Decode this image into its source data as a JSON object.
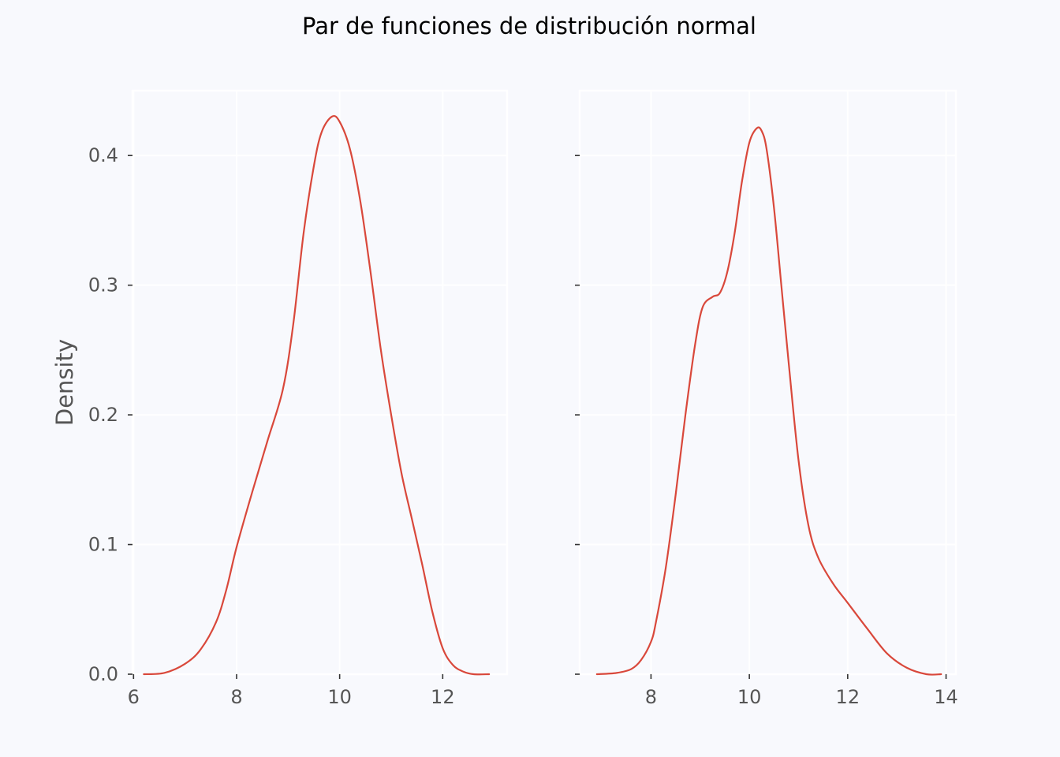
{
  "colors": {
    "background": "#f8f9fd",
    "axes_background": "#f8f9fd",
    "grid": "#ffffff",
    "line": "#d9483b",
    "text": "#555555",
    "title": "#000000"
  },
  "chart_data": {
    "suptitle": "Par de funciones de distribución normal",
    "subplots": [
      {
        "type": "line",
        "kind": "kde",
        "xlabel": "",
        "ylabel": "Density",
        "xlim": [
          5.98,
          13.25
        ],
        "ylim": [
          0,
          0.45
        ],
        "xticks": [
          6,
          8,
          10,
          12
        ],
        "xtick_labels": [
          "6",
          "8",
          "10",
          "12"
        ],
        "yticks": [
          0.0,
          0.1,
          0.2,
          0.3,
          0.4
        ],
        "ytick_labels": [
          "0.0",
          "0.1",
          "0.2",
          "0.3",
          "0.4"
        ],
        "show_ytick_labels": true,
        "grid": true,
        "series": [
          {
            "x": [
              6.2,
              6.6,
              7.0,
              7.3,
              7.6,
              7.8,
              8.0,
              8.3,
              8.6,
              8.9,
              9.1,
              9.3,
              9.5,
              9.65,
              9.85,
              10.0,
              10.2,
              10.4,
              10.6,
              10.8,
              11.0,
              11.2,
              11.4,
              11.6,
              11.8,
              12.0,
              12.2,
              12.4,
              12.6,
              12.9
            ],
            "y": [
              0.0,
              0.001,
              0.008,
              0.019,
              0.04,
              0.065,
              0.098,
              0.14,
              0.18,
              0.22,
              0.27,
              0.34,
              0.392,
              0.418,
              0.43,
              0.426,
              0.405,
              0.365,
              0.31,
              0.25,
              0.2,
              0.155,
              0.12,
              0.085,
              0.048,
              0.02,
              0.007,
              0.002,
              0.0,
              0.0
            ]
          }
        ]
      },
      {
        "type": "line",
        "kind": "kde",
        "xlabel": "",
        "ylabel": "",
        "xlim": [
          6.55,
          14.2
        ],
        "ylim": [
          0,
          0.45
        ],
        "xticks": [
          8,
          10,
          12,
          14
        ],
        "xtick_labels": [
          "8",
          "10",
          "12",
          "14"
        ],
        "yticks": [
          0.0,
          0.1,
          0.2,
          0.3,
          0.4
        ],
        "ytick_labels": [
          "",
          "",
          "",
          "",
          ""
        ],
        "show_ytick_labels": false,
        "grid": true,
        "series": [
          {
            "x": [
              6.9,
              7.3,
              7.6,
              7.8,
              8.0,
              8.1,
              8.3,
              8.5,
              8.7,
              8.9,
              9.05,
              9.25,
              9.4,
              9.55,
              9.7,
              9.85,
              10.0,
              10.15,
              10.25,
              10.35,
              10.5,
              10.65,
              10.8,
              11.0,
              11.2,
              11.4,
              11.7,
              12.0,
              12.4,
              12.8,
              13.2,
              13.6,
              13.9
            ],
            "y": [
              0.0,
              0.001,
              0.004,
              0.011,
              0.025,
              0.04,
              0.082,
              0.138,
              0.2,
              0.255,
              0.283,
              0.291,
              0.294,
              0.31,
              0.34,
              0.38,
              0.41,
              0.421,
              0.419,
              0.405,
              0.36,
              0.3,
              0.24,
              0.165,
              0.115,
              0.09,
              0.07,
              0.055,
              0.035,
              0.016,
              0.005,
              0.0,
              0.0
            ]
          }
        ]
      }
    ]
  }
}
